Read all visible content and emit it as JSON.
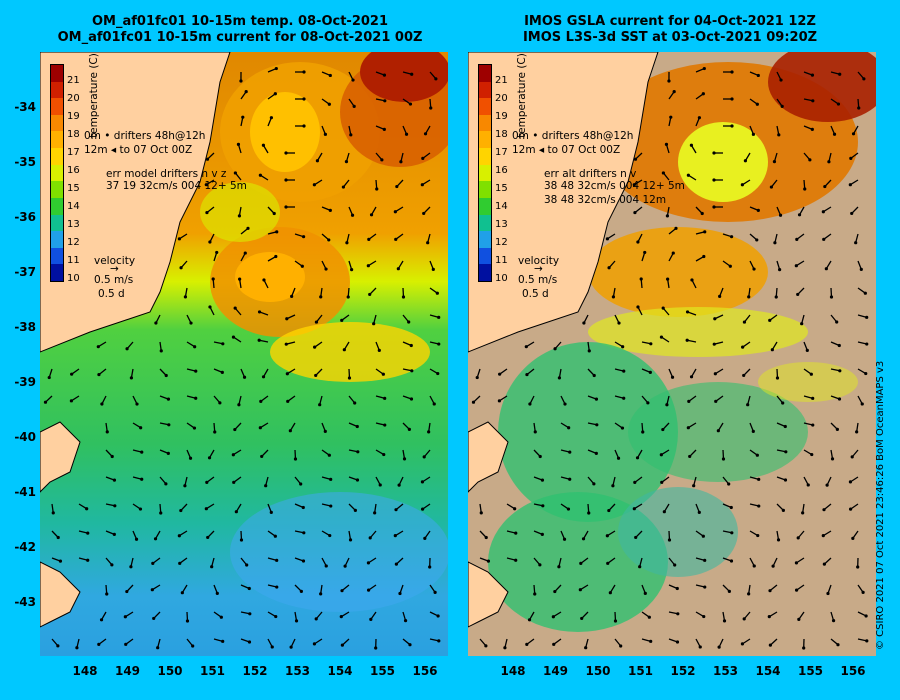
{
  "titles": {
    "left_line1": "OM_af01fc01 10-15m temp. 08-Oct-2021",
    "left_line2": "OM_af01fc01 10-15m current for 08-Oct-2021 00Z",
    "right_line1": "IMOS GSLA current for 04-Oct-2021 12Z",
    "right_line2": "IMOS L3S-3d SST at 03-Oct-2021 09:20Z"
  },
  "colorbar": {
    "title": "temperature (C)",
    "labels": [
      "21",
      "20",
      "19",
      "18",
      "17",
      "16",
      "15",
      "14",
      "13",
      "12",
      "11",
      "10"
    ],
    "colors": [
      "#9e0000",
      "#d02000",
      "#f05000",
      "#f88800",
      "#ffb000",
      "#ffd400",
      "#d8f000",
      "#80e000",
      "#30cc30",
      "#10c090",
      "#20a0e8",
      "#1050e0",
      "#0010a0"
    ]
  },
  "legend": {
    "left": {
      "line1": "0m  •  drifters 48h@12h",
      "line2": "12m ◂  to 07 Oct 00Z",
      "err_title": "err model drifters n v z",
      "err_line1": "37 19 32cm/s 004 12+ 5m",
      "err_line2": "",
      "velocity": "velocity",
      "speed": "0.5 m/s",
      "duration": "0.5 d"
    },
    "right": {
      "line1": "0m  •  drifters 48h@12h",
      "line2": "12m ◂  to 07 Oct 00Z",
      "err_title": "err alt drifters n v",
      "err_line1": "38 48 32cm/s 004 12+ 5m",
      "err_line2": "38 48 32cm/s 004 12m",
      "velocity": "velocity",
      "speed": "0.5 m/s",
      "duration": "0.5 d"
    }
  },
  "axes": {
    "y_ticks": [
      "-34",
      "-35",
      "-36",
      "-37",
      "-38",
      "-39",
      "-40",
      "-41",
      "-42",
      "-43"
    ],
    "x_ticks": [
      "148",
      "149",
      "150",
      "151",
      "152",
      "153",
      "154",
      "155",
      "156"
    ]
  },
  "credit": "© CSIRO 2021  07 Oct 2021 23:46:26 BoM OceanMAPS v3",
  "colors": {
    "background": "#00c8ff",
    "land": "#ffd0a0",
    "no_data": "#c8aa88",
    "arrow": "#000000"
  }
}
